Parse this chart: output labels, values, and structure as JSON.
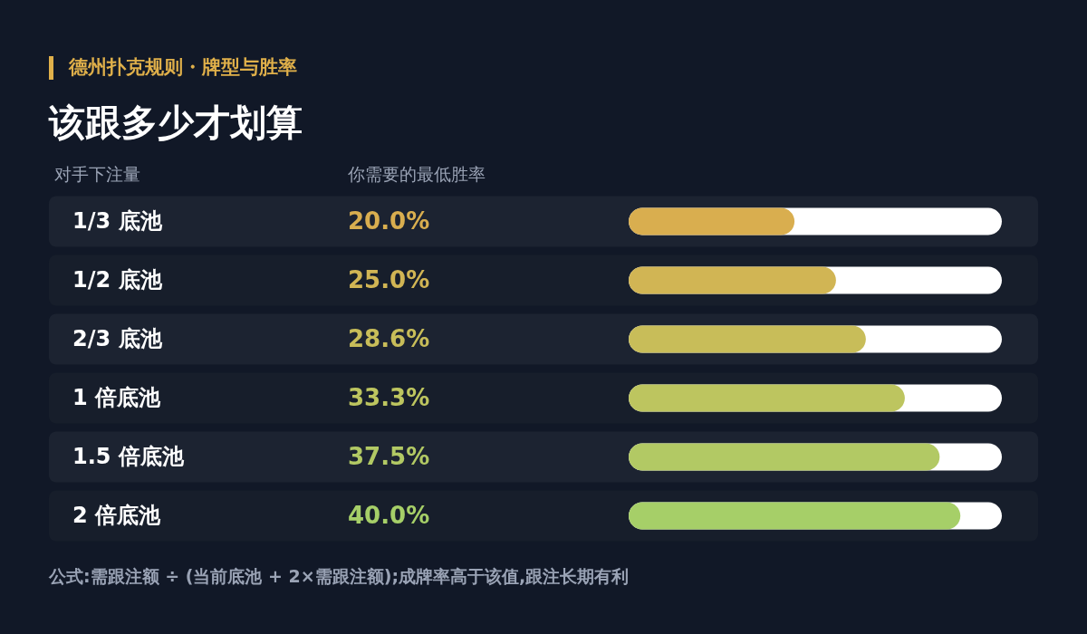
{
  "chart_data": {
    "type": "bar",
    "orientation": "horizontal",
    "subtitle": "德州扑克规则・牌型与胜率",
    "title": "该跟多少才划算",
    "ylabel": "对手下注量",
    "xlabel": "你需要的最低胜率",
    "categories": [
      "1/3 底池",
      "1/2 底池",
      "2/3 底池",
      "1 倍底池",
      "1.5 倍底池",
      "2 倍底池"
    ],
    "values": [
      20.0,
      25.0,
      28.6,
      33.3,
      37.5,
      40.0
    ],
    "colors": [
      "#d9ae4f",
      "#d1b554",
      "#c8bd59",
      "#bdc55f",
      "#b2c964",
      "#a6cf68"
    ],
    "value_labels": [
      "20.0%",
      "25.0%",
      "28.6%",
      "33.3%",
      "37.5%",
      "40.0%"
    ],
    "xlim": [
      0,
      45
    ],
    "tick_labels": "y",
    "bands": [
      {
        "axis": "y",
        "from": "1/3 底池",
        "to": "1/3 底池",
        "color": "#1c2331"
      },
      {
        "axis": "y",
        "from": "1/2 底池",
        "to": "1/2 底池",
        "color": "#171e2b"
      },
      {
        "axis": "y",
        "from": "2/3 底池",
        "to": "2/3 底池",
        "color": "#1c2331"
      },
      {
        "axis": "y",
        "from": "1 倍底池",
        "to": "1 倍底池",
        "color": "#171e2b"
      },
      {
        "axis": "y",
        "from": "1.5 倍底池",
        "to": "1.5 倍底池",
        "color": "#1c2331"
      },
      {
        "axis": "y",
        "from": "2 倍底池",
        "to": "2 倍底池",
        "color": "#171e2b"
      }
    ],
    "annotations": [
      "公式:需跟注额 ÷ (当前底池 + 2×需跟注额);成牌率高于该值,跟注长期有利"
    ]
  }
}
